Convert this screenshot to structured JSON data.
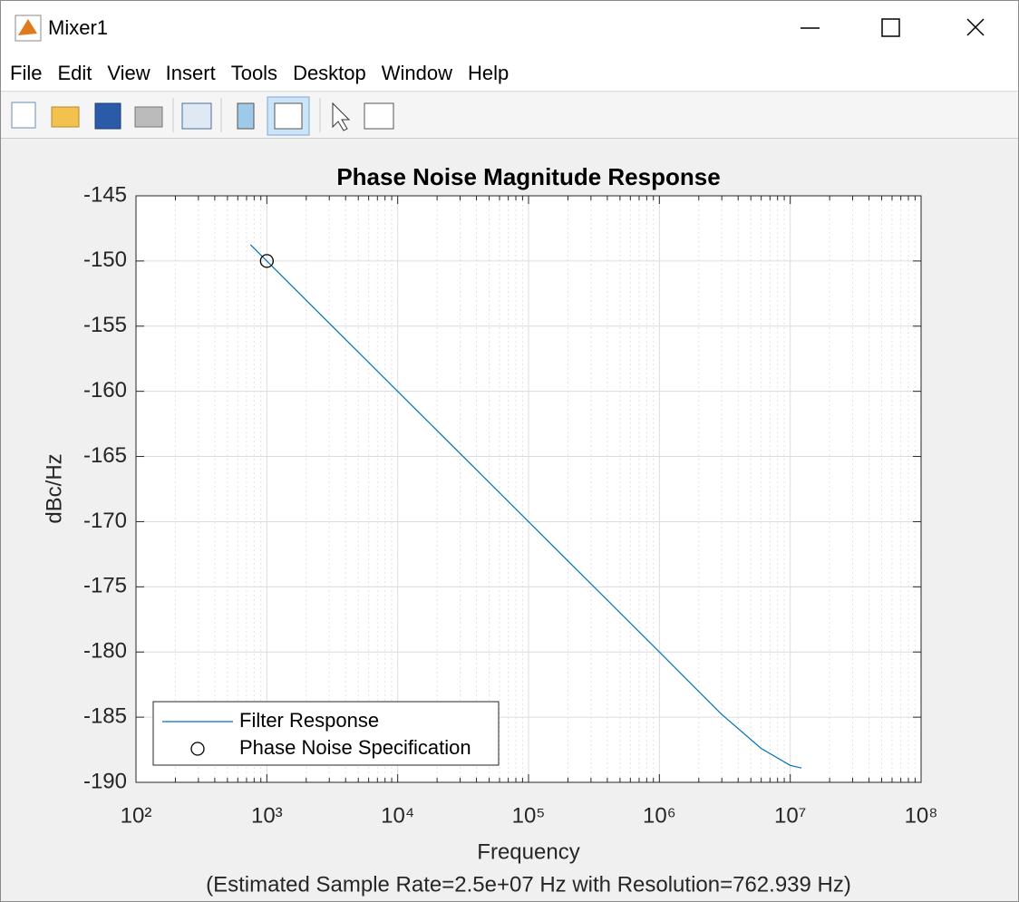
{
  "window": {
    "title": "Mixer1",
    "menu": [
      "File",
      "Edit",
      "View",
      "Insert",
      "Tools",
      "Desktop",
      "Window",
      "Help"
    ]
  },
  "chart_data": {
    "type": "line",
    "title": "Phase Noise Magnitude Response",
    "xlabel": "Frequency",
    "note": "(Estimated Sample Rate=2.5e+07 Hz with Resolution=762.939 Hz)",
    "ylabel": "dBc/Hz",
    "xscale": "log",
    "xlim": [
      100,
      100000000
    ],
    "xticks": [
      {
        "value": 100,
        "label": "10²"
      },
      {
        "value": 1000,
        "label": "10³"
      },
      {
        "value": 10000,
        "label": "10⁴"
      },
      {
        "value": 100000,
        "label": "10⁵"
      },
      {
        "value": 1000000,
        "label": "10⁶"
      },
      {
        "value": 10000000,
        "label": "10⁷"
      },
      {
        "value": 100000000,
        "label": "10⁸"
      }
    ],
    "ylim": [
      -190,
      -145
    ],
    "yticks": [
      -190,
      -185,
      -180,
      -175,
      -170,
      -165,
      -160,
      -155,
      -150,
      -145
    ],
    "grid": true,
    "minor_grid": true,
    "legend": "southwest",
    "series": [
      {
        "name": "Filter Response",
        "color": "#0072bd",
        "x": [
          750,
          1000,
          10000,
          100000,
          1000000,
          3000000,
          6000000,
          10000000,
          12200000
        ],
        "values": [
          -148.75,
          -150,
          -160,
          -170,
          -180,
          -184.8,
          -187.4,
          -188.7,
          -188.9
        ]
      },
      {
        "name": "Phase Noise Specification",
        "color": "#000000",
        "marker": "o",
        "x": [
          1000
        ],
        "values": [
          -150
        ]
      }
    ]
  }
}
